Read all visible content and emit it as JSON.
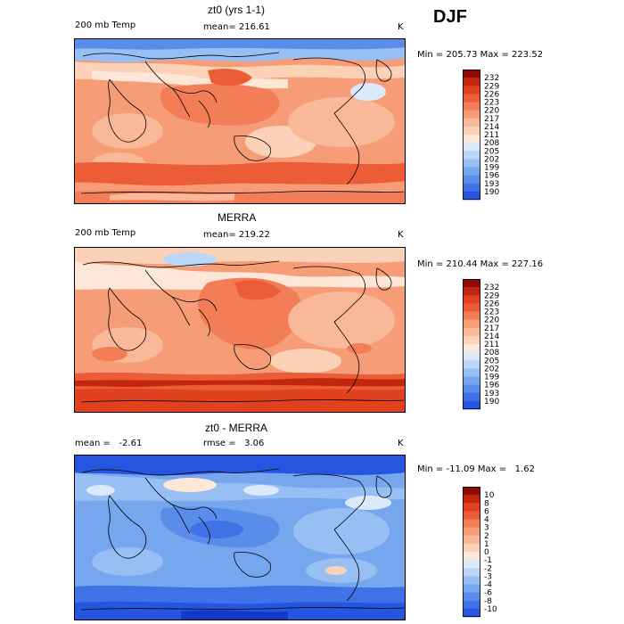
{
  "season": "DJF",
  "panels": [
    {
      "title": "zt0 (yrs 1-1)",
      "left_label": "200 mb Temp",
      "mean_label": "mean= 216.61",
      "unit": "K",
      "minmax": "Min = 205.73 Max = 223.52",
      "colorbar_ticks": [
        "232",
        "229",
        "226",
        "223",
        "220",
        "217",
        "214",
        "211",
        "208",
        "205",
        "202",
        "199",
        "196",
        "193",
        "190"
      ]
    },
    {
      "title": "MERRA",
      "left_label": "200 mb Temp",
      "mean_label": "mean= 219.22",
      "unit": "K",
      "minmax": "Min = 210.44 Max = 227.16",
      "colorbar_ticks": [
        "232",
        "229",
        "226",
        "223",
        "220",
        "217",
        "214",
        "211",
        "208",
        "205",
        "202",
        "199",
        "196",
        "193",
        "190"
      ]
    },
    {
      "title": "zt0 - MERRA",
      "left_label": "mean =   -2.61",
      "mean_label": "rmse =   3.06",
      "unit": "K",
      "minmax": "Min = -11.09 Max =   1.62",
      "colorbar_ticks": [
        "10",
        "8",
        "6",
        "4",
        "3",
        "2",
        "1",
        "0",
        "-1",
        "-2",
        "-3",
        "-4",
        "-6",
        "-8",
        "-10"
      ]
    }
  ],
  "chart_data": [
    {
      "type": "heatmap",
      "title": "zt0 (yrs 1-1)",
      "variable": "200 mb Temp",
      "units": "K",
      "mean": 216.61,
      "min": 205.73,
      "max": 223.52,
      "colorbar_levels": [
        190,
        193,
        196,
        199,
        202,
        205,
        208,
        211,
        214,
        217,
        220,
        223,
        226,
        229,
        232
      ]
    },
    {
      "type": "heatmap",
      "title": "MERRA",
      "variable": "200 mb Temp",
      "units": "K",
      "mean": 219.22,
      "min": 210.44,
      "max": 227.16,
      "colorbar_levels": [
        190,
        193,
        196,
        199,
        202,
        205,
        208,
        211,
        214,
        217,
        220,
        223,
        226,
        229,
        232
      ]
    },
    {
      "type": "heatmap",
      "title": "zt0 - MERRA",
      "units": "K",
      "mean": -2.61,
      "rmse": 3.06,
      "min": -11.09,
      "max": 1.62,
      "colorbar_levels": [
        -10,
        -8,
        -6,
        -4,
        -3,
        -2,
        -1,
        0,
        1,
        2,
        3,
        4,
        6,
        8,
        10
      ]
    }
  ],
  "colors": {
    "warm": [
      "#fde7d8",
      "#fbd1b8",
      "#f9b898",
      "#f69c77",
      "#f27d56",
      "#ec5c37",
      "#e0411f",
      "#c2260f",
      "#8e0a02"
    ],
    "cool": [
      "#dbe9fb",
      "#bcd6f8",
      "#98bff3",
      "#76a6ee",
      "#5a8ce9",
      "#3f72e6",
      "#2656e0",
      "#123ac9",
      "#0a1d95"
    ]
  }
}
